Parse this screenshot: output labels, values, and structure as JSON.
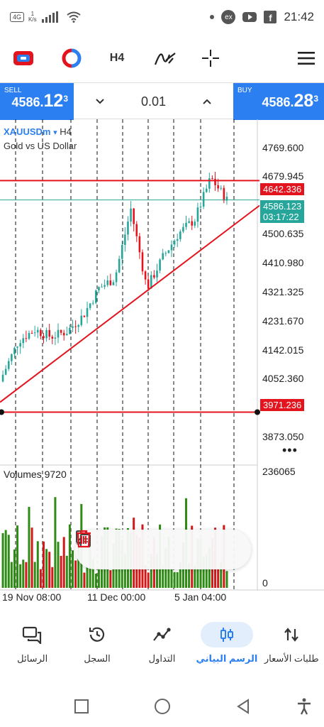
{
  "status_bar": {
    "network_badge": "4G",
    "speed_value": "1",
    "speed_unit": "K/s",
    "ex_icon_text": "ex",
    "time": "21:42"
  },
  "toolbar": {
    "timeframe": "H4"
  },
  "trade": {
    "sell_label": "SELL",
    "sell_price_prefix": "4586.",
    "sell_price_big": "12",
    "sell_price_sup": "3",
    "lot_value": "0.01",
    "buy_label": "BUY",
    "buy_price_prefix": "4586.",
    "buy_price_big": "28",
    "buy_price_sup": "3"
  },
  "chart": {
    "symbol": "XAUUSDm",
    "symbol_arrow": "▾",
    "timeframe": "H4",
    "description": "Gold vs US Dollar",
    "price_labels": [
      "4769.600",
      "4679.945",
      "4500.635",
      "4410.980",
      "4321.325",
      "4231.670",
      "4142.015",
      "4052.360",
      "3873.050"
    ],
    "line_tag_upper": "4642.336",
    "line_tag_lower": "3971.236",
    "bid_tag_price": "4586.123",
    "bid_tag_countdown": "03:17:22",
    "more_dots": "•••",
    "volumes_label": "Volumes 9720",
    "volume_max": "236065",
    "volume_min": "0",
    "time_labels": [
      "19 Nov 08:00",
      "11 Dec 00:00",
      "5 Jan 04:00"
    ],
    "colors": {
      "up": "#26a69a",
      "down": "#e3141e",
      "volume_up": "#2e8b14",
      "volume_down": "#d21919",
      "hline": "#e3141e",
      "bid": "#26a69a"
    }
  },
  "chart_data": {
    "type": "candlestick",
    "symbol": "XAUUSDm",
    "timeframe": "H4",
    "ylim": [
      3820,
      4820
    ],
    "approx_close_path": [
      {
        "t": "19 Nov 08:00",
        "close": 4080
      },
      {
        "t": "",
        "close": 4180
      },
      {
        "t": "",
        "close": 4210
      },
      {
        "t": "",
        "close": 4190
      },
      {
        "t": "",
        "close": 4205
      },
      {
        "t": "11 Dec 00:00",
        "close": 4250
      },
      {
        "t": "",
        "close": 4330
      },
      {
        "t": "",
        "close": 4360
      },
      {
        "t": "",
        "close": 4560
      },
      {
        "t": "",
        "close": 4330
      },
      {
        "t": "",
        "close": 4420
      },
      {
        "t": "",
        "close": 4490
      },
      {
        "t": "5 Jan 04:00",
        "close": 4530
      },
      {
        "t": "",
        "close": 4650
      },
      {
        "t": "",
        "close": 4586.123
      }
    ],
    "horizontal_lines": [
      4642.336,
      3971.236
    ],
    "bid": 4586.123,
    "volumes": {
      "max": 236065,
      "last": 9720
    }
  },
  "floating_tools": {
    "drag": "drag-handle-icon",
    "edit": "pencil-icon",
    "copy": "copy-icon",
    "delete": "trash-icon"
  },
  "bottom_nav": [
    {
      "label": "طلبات الأسعار",
      "icon": "quotes-arrows-icon",
      "active": false
    },
    {
      "label": "الرسم البياني",
      "icon": "chart-candles-icon",
      "active": true
    },
    {
      "label": "التداول",
      "icon": "trade-line-icon",
      "active": false
    },
    {
      "label": "السجل",
      "icon": "history-clock-icon",
      "active": false
    },
    {
      "label": "الرسائل",
      "icon": "messages-icon",
      "active": false
    }
  ]
}
